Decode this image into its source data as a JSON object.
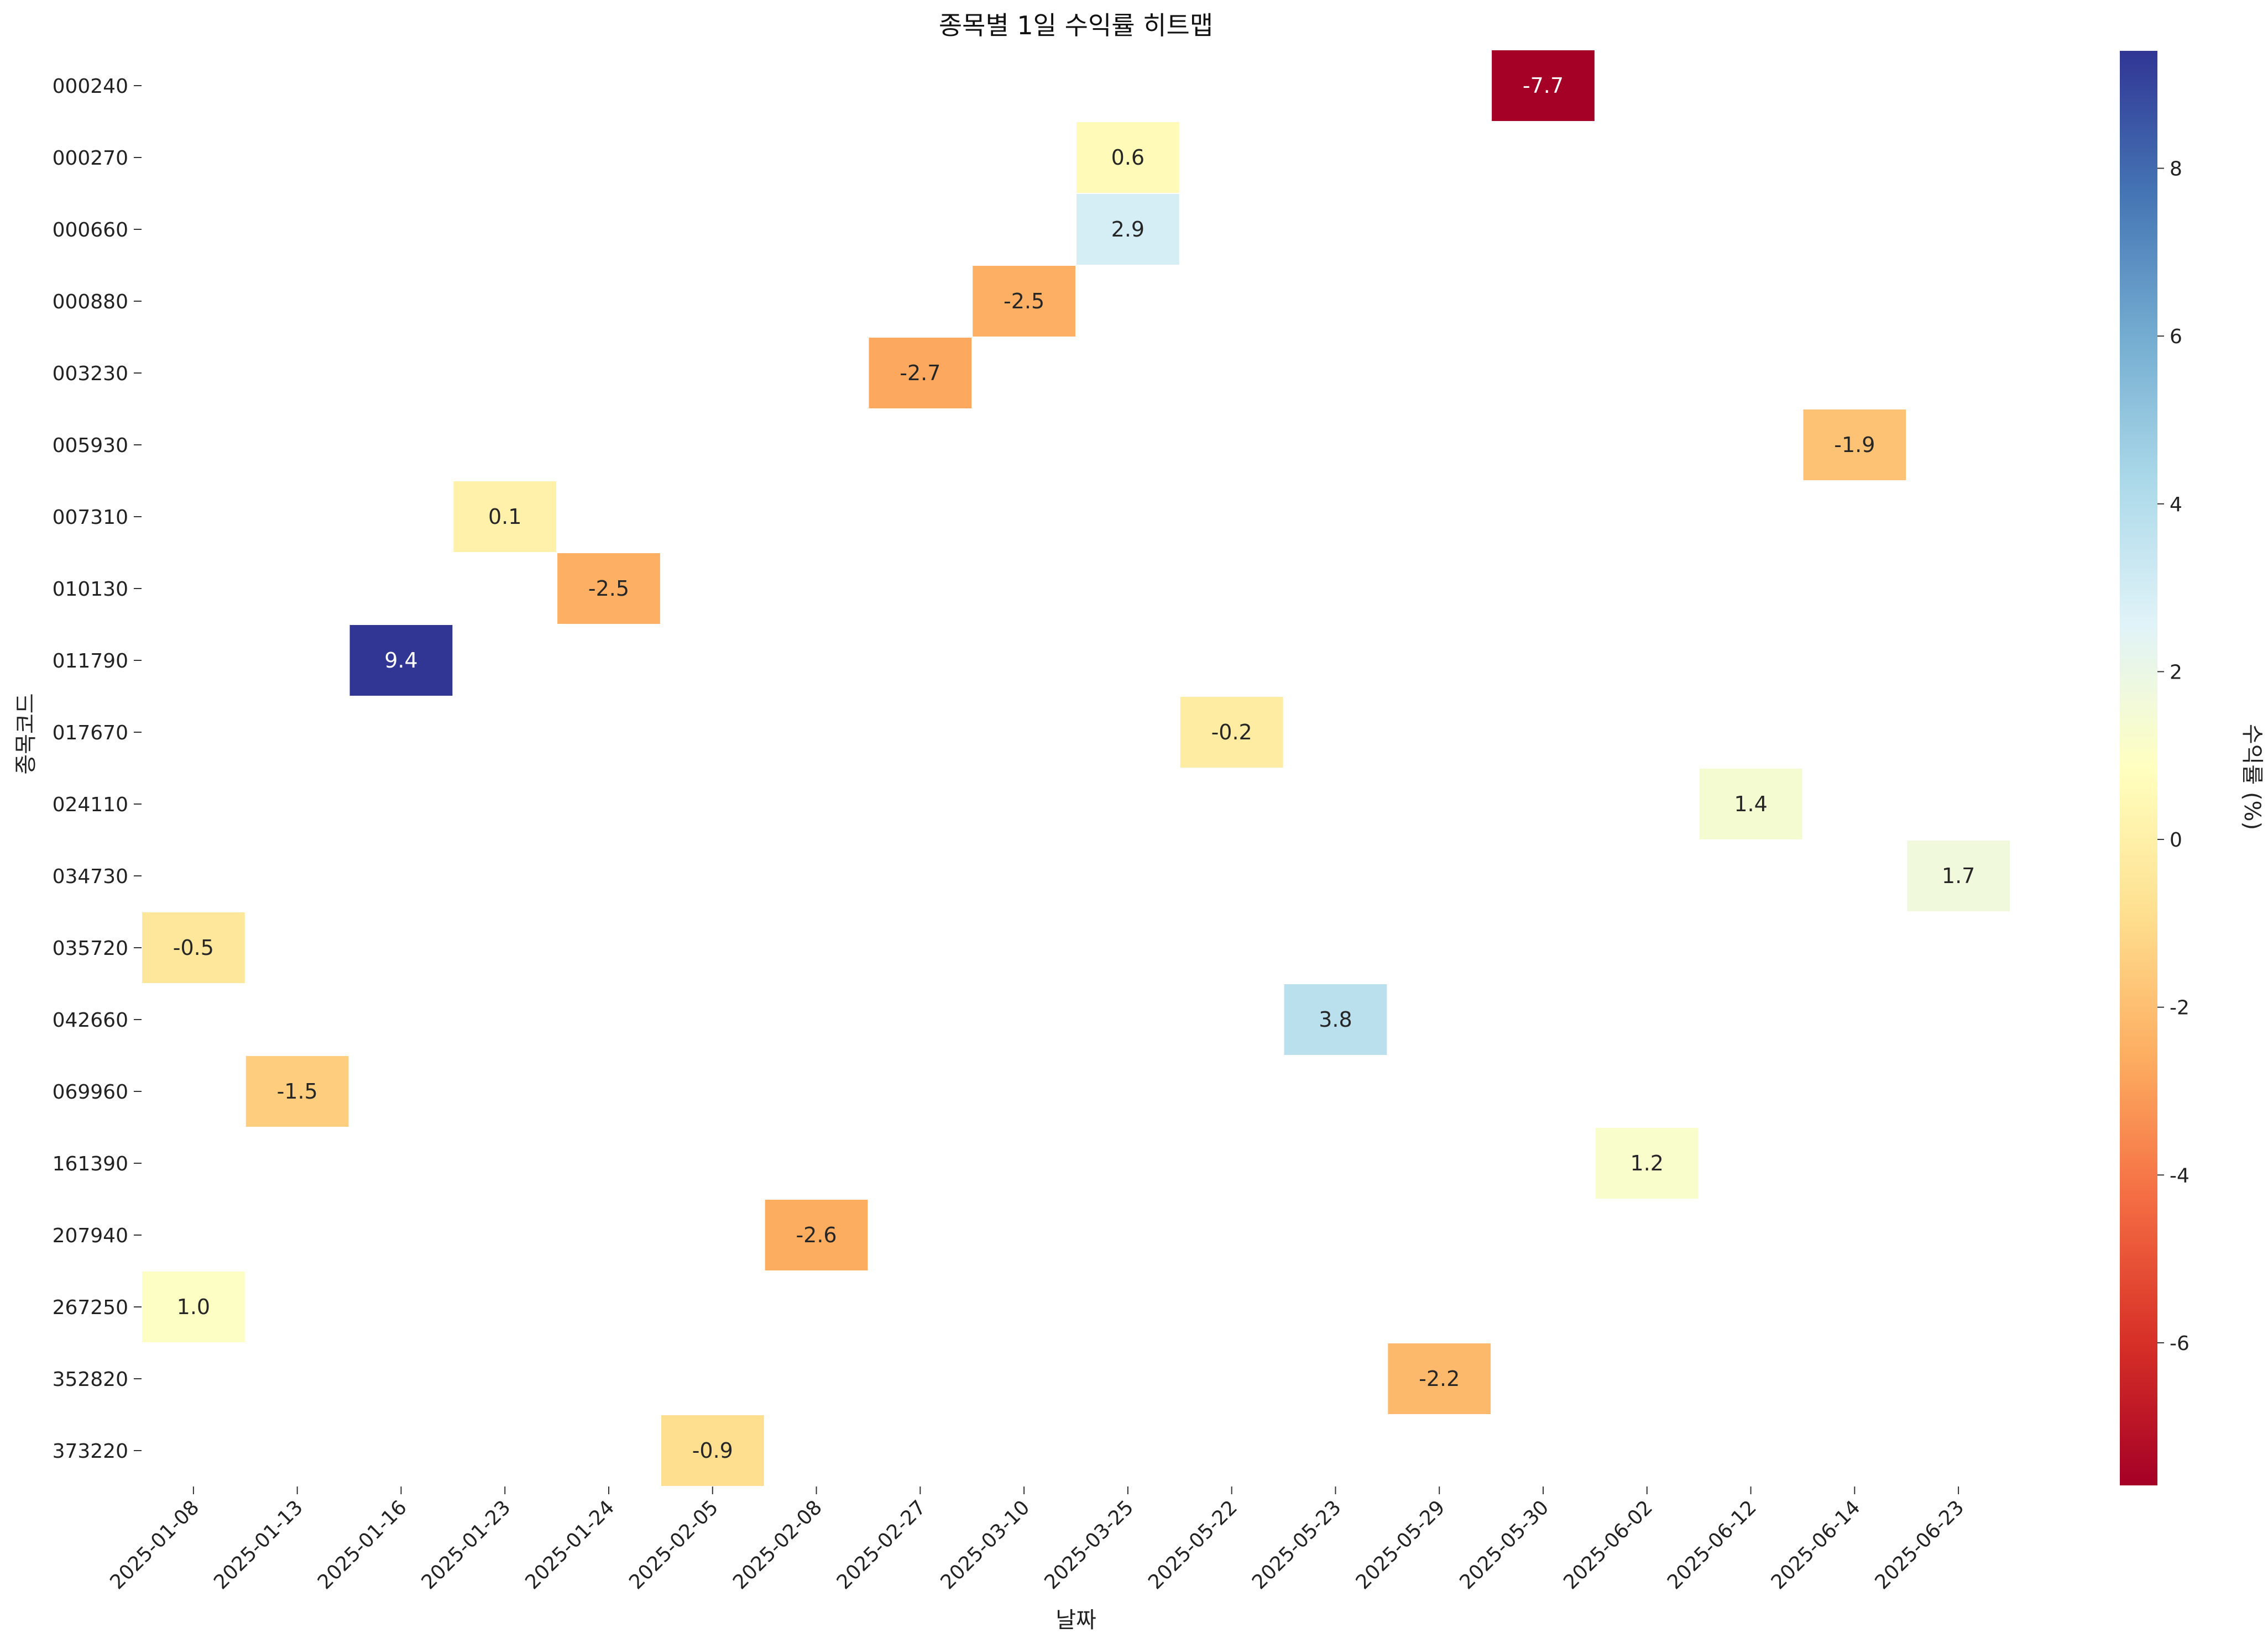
{
  "chart_data": {
    "type": "heatmap",
    "title": "종목별 1일 수익률 히트맵",
    "xlabel": "날짜",
    "ylabel": "종목코드",
    "x_categories": [
      "2025-01-08",
      "2025-01-13",
      "2025-01-16",
      "2025-01-23",
      "2025-01-24",
      "2025-02-05",
      "2025-02-08",
      "2025-02-27",
      "2025-03-10",
      "2025-03-25",
      "2025-05-22",
      "2025-05-23",
      "2025-05-29",
      "2025-05-30",
      "2025-06-02",
      "2025-06-12",
      "2025-06-14",
      "2025-06-23"
    ],
    "y_categories": [
      "000240",
      "000270",
      "000660",
      "000880",
      "003230",
      "005930",
      "007310",
      "010130",
      "011790",
      "017670",
      "024110",
      "034730",
      "035720",
      "042660",
      "069960",
      "161390",
      "207940",
      "267250",
      "352820",
      "373220"
    ],
    "cells": [
      {
        "row": "000240",
        "col": "2025-05-30",
        "value": -7.7
      },
      {
        "row": "000270",
        "col": "2025-03-25",
        "value": 0.6
      },
      {
        "row": "000660",
        "col": "2025-03-25",
        "value": 2.9
      },
      {
        "row": "000880",
        "col": "2025-03-10",
        "value": -2.5
      },
      {
        "row": "003230",
        "col": "2025-02-27",
        "value": -2.7
      },
      {
        "row": "005930",
        "col": "2025-06-14",
        "value": -1.9
      },
      {
        "row": "007310",
        "col": "2025-01-23",
        "value": 0.1
      },
      {
        "row": "010130",
        "col": "2025-01-24",
        "value": -2.5
      },
      {
        "row": "011790",
        "col": "2025-01-16",
        "value": 9.4
      },
      {
        "row": "017670",
        "col": "2025-05-22",
        "value": -0.2
      },
      {
        "row": "024110",
        "col": "2025-06-12",
        "value": 1.4
      },
      {
        "row": "034730",
        "col": "2025-06-23",
        "value": 1.7
      },
      {
        "row": "035720",
        "col": "2025-01-08",
        "value": -0.5
      },
      {
        "row": "042660",
        "col": "2025-05-23",
        "value": 3.8
      },
      {
        "row": "069960",
        "col": "2025-01-13",
        "value": -1.5
      },
      {
        "row": "161390",
        "col": "2025-06-02",
        "value": 1.2
      },
      {
        "row": "207940",
        "col": "2025-02-08",
        "value": -2.6
      },
      {
        "row": "267250",
        "col": "2025-01-08",
        "value": 1.0
      },
      {
        "row": "352820",
        "col": "2025-05-29",
        "value": -2.2
      },
      {
        "row": "373220",
        "col": "2025-02-05",
        "value": -0.9
      }
    ],
    "colorbar": {
      "label": "수익률 (%)",
      "colormap": "RdYlBu",
      "vmin": -7.7,
      "vmax": 9.4,
      "ticks": [
        -6,
        -4,
        -2,
        0,
        2,
        4,
        6,
        8
      ]
    },
    "grid": false,
    "legend": "colorbar-right"
  }
}
